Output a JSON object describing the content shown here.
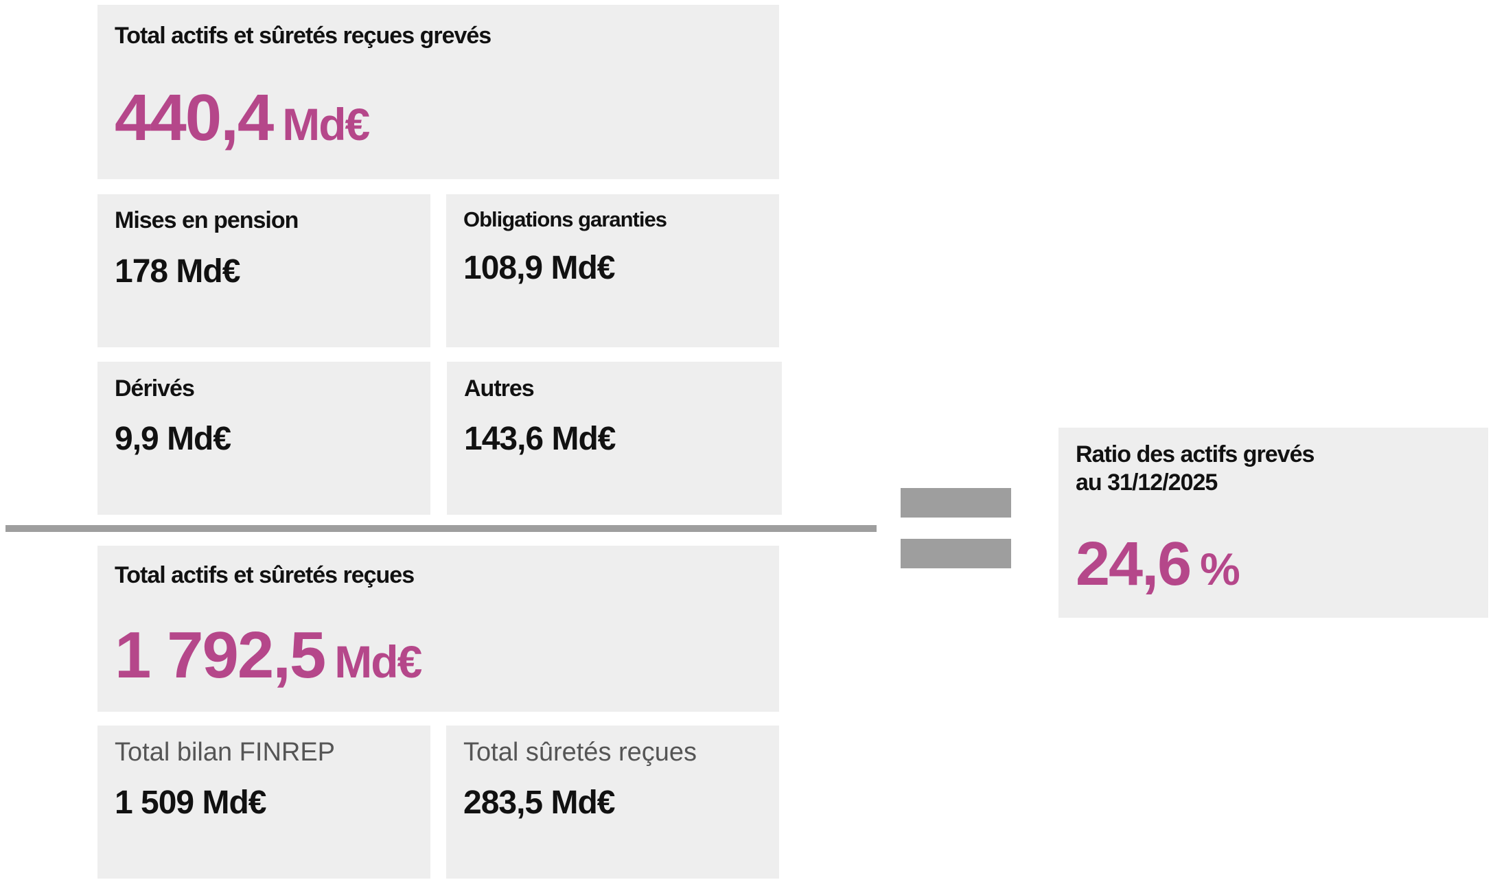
{
  "accent_color": "#b5478a",
  "encumbered": {
    "title": "Total actifs et sûretés reçues grevés",
    "value": "440,4",
    "unit": "Md€",
    "items": [
      {
        "label": "Mises en pension",
        "value": "178 Md€"
      },
      {
        "label": "Obligations garanties",
        "value": "108,9 Md€"
      },
      {
        "label": "Dérivés",
        "value": "9,9 Md€"
      },
      {
        "label": "Autres",
        "value": "143,6 Md€"
      }
    ]
  },
  "total": {
    "title": "Total actifs et sûretés reçues",
    "value": "1 792,5",
    "unit": "Md€",
    "items": [
      {
        "label": "Total bilan FINREP",
        "value": "1 509 Md€"
      },
      {
        "label": "Total sûretés reçues",
        "value": "283,5 Md€"
      }
    ]
  },
  "ratio": {
    "title_line1": "Ratio des actifs grevés",
    "title_line2": "au 31/12/2025",
    "value": "24,6",
    "unit": "%"
  }
}
